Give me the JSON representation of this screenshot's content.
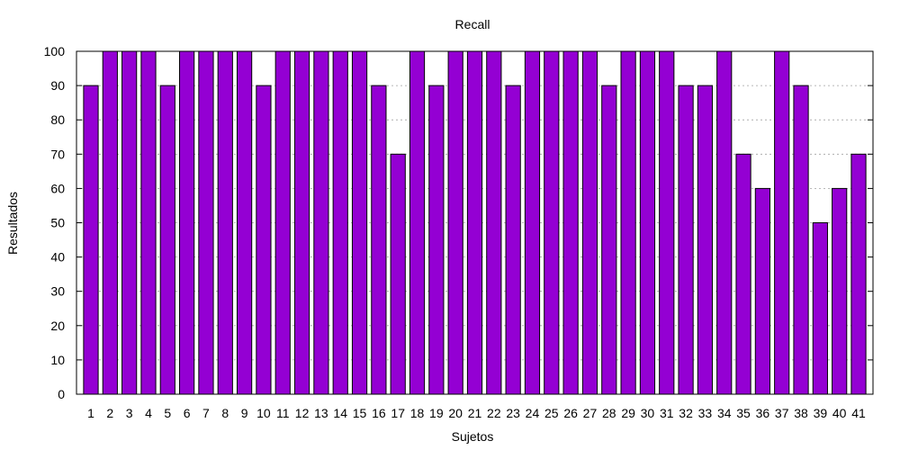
{
  "chart_data": {
    "type": "bar",
    "title": "Recall",
    "xlabel": "Sujetos",
    "ylabel": "Resultados",
    "ylim": [
      0,
      100
    ],
    "yticks": [
      0,
      10,
      20,
      30,
      40,
      50,
      60,
      70,
      80,
      90,
      100
    ],
    "grid": true,
    "bar_color": "#9400d3",
    "categories": [
      "1",
      "2",
      "3",
      "4",
      "5",
      "6",
      "7",
      "8",
      "9",
      "10",
      "11",
      "12",
      "13",
      "14",
      "15",
      "16",
      "17",
      "18",
      "19",
      "20",
      "21",
      "22",
      "23",
      "24",
      "25",
      "26",
      "27",
      "28",
      "29",
      "30",
      "31",
      "32",
      "33",
      "34",
      "35",
      "36",
      "37",
      "38",
      "39",
      "40",
      "41"
    ],
    "values": [
      90,
      100,
      100,
      100,
      90,
      100,
      100,
      100,
      100,
      90,
      100,
      100,
      100,
      100,
      100,
      90,
      70,
      100,
      90,
      100,
      100,
      100,
      90,
      100,
      100,
      100,
      100,
      90,
      100,
      100,
      100,
      90,
      90,
      100,
      70,
      60,
      100,
      90,
      50,
      60,
      70
    ]
  }
}
